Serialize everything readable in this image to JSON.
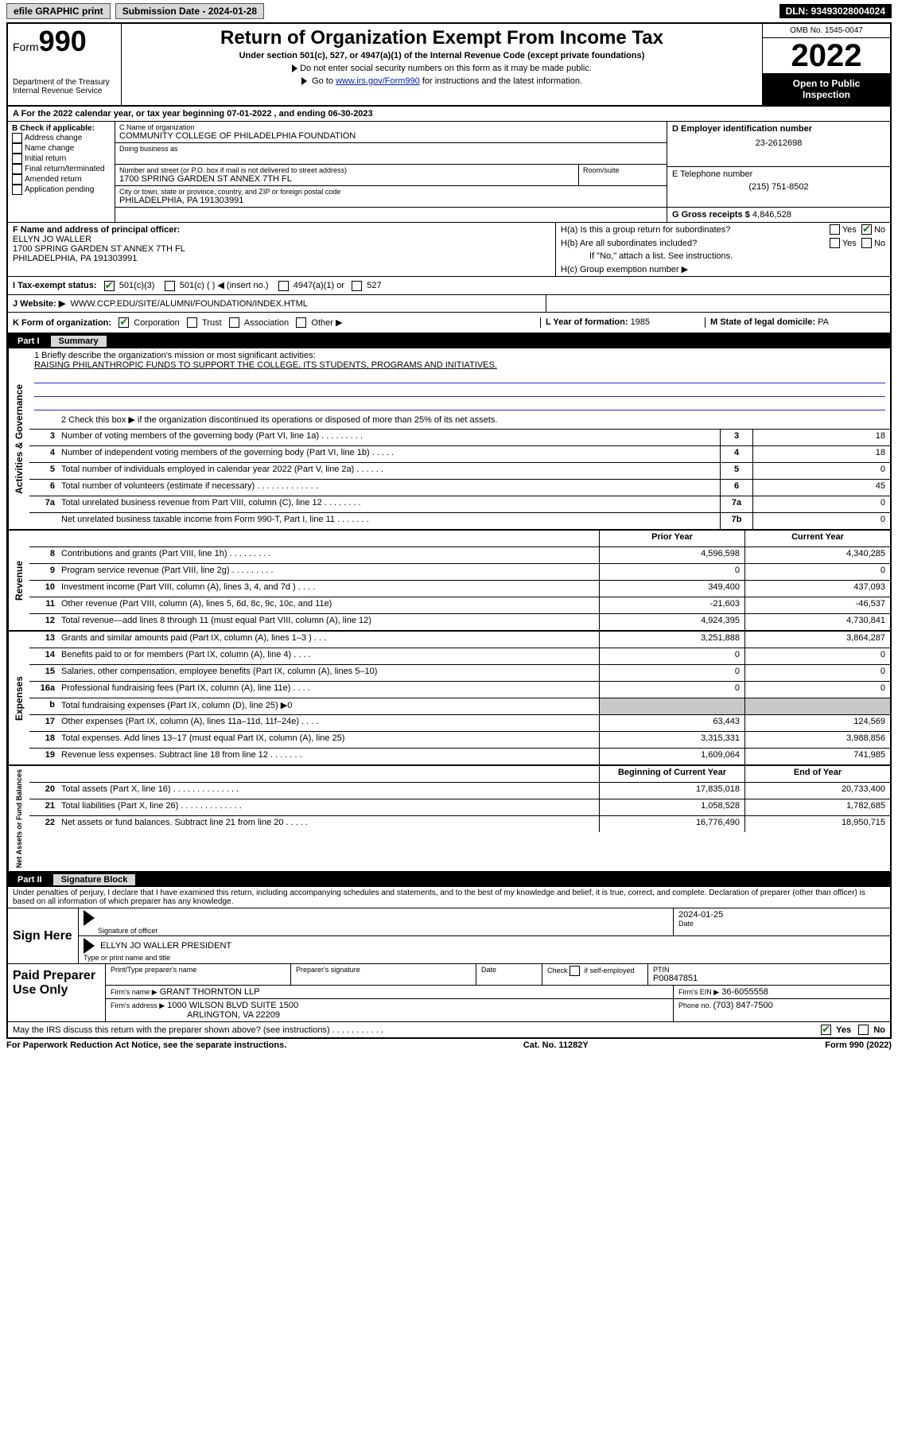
{
  "topbar": {
    "efile": "efile GRAPHIC print",
    "subdate_label": "Submission Date - 2024-01-28",
    "dln": "DLN: 93493028004024"
  },
  "header": {
    "form_label": "Form",
    "big990": "990",
    "dept": "Department of the Treasury",
    "irs": "Internal Revenue Service",
    "title": "Return of Organization Exempt From Income Tax",
    "sub1": "Under section 501(c), 527, or 4947(a)(1) of the Internal Revenue Code (except private foundations)",
    "sub2": "Do not enter social security numbers on this form as it may be made public.",
    "sub3_pre": "Go to ",
    "sub3_link": "www.irs.gov/Form990",
    "sub3_post": " for instructions and the latest information.",
    "omb": "OMB No. 1545-0047",
    "year": "2022",
    "inspect1": "Open to Public",
    "inspect2": "Inspection"
  },
  "rowA": {
    "label": "A For the 2022 calendar year, or tax year beginning ",
    "begin": "07-01-2022",
    "mid": " , and ending ",
    "end": "06-30-2023"
  },
  "B": {
    "label": "B Check if applicable:",
    "opts": [
      "Address change",
      "Name change",
      "Initial return",
      "Final return/terminated",
      "Amended return",
      "Application pending"
    ]
  },
  "C": {
    "name_label": "C Name of organization",
    "name": "COMMUNITY COLLEGE OF PHILADELPHIA FOUNDATION",
    "dba_label": "Doing business as",
    "addr_label": "Number and street (or P.O. box if mail is not delivered to street address)",
    "addr": "1700 SPRING GARDEN ST ANNEX 7TH FL",
    "suite_label": "Room/suite",
    "city_label": "City or town, state or province, country, and ZIP or foreign postal code",
    "city": "PHILADELPHIA, PA  191303991"
  },
  "D": {
    "label": "D Employer identification number",
    "val": "23-2612698"
  },
  "E": {
    "label": "E Telephone number",
    "val": "(215) 751-8502"
  },
  "G": {
    "label": "G Gross receipts $ ",
    "val": "4,846,528"
  },
  "F": {
    "label": "F Name and address of principal officer:",
    "name": "ELLYN JO WALLER",
    "addr1": "1700 SPRING GARDEN ST ANNEX 7TH FL",
    "addr2": "PHILADELPHIA, PA  191303991"
  },
  "H": {
    "a_label": "H(a)  Is this a group return for subordinates?",
    "b_label": "H(b)  Are all subordinates included?",
    "b_note": "If \"No,\" attach a list. See instructions.",
    "c_label": "H(c)  Group exemption number ▶",
    "yes": "Yes",
    "no": "No"
  },
  "I": {
    "label": "I    Tax-exempt status:",
    "o1": "501(c)(3)",
    "o2": "501(c) (   ) ◀ (insert no.)",
    "o3": "4947(a)(1) or",
    "o4": "527"
  },
  "J": {
    "label": "J    Website: ▶",
    "val": "WWW.CCP.EDU/SITE/ALUMNI/FOUNDATION/INDEX.HTML"
  },
  "K": {
    "label": "K Form of organization:",
    "o1": "Corporation",
    "o2": "Trust",
    "o3": "Association",
    "o4": "Other ▶"
  },
  "L": {
    "label": "L Year of formation: ",
    "val": "1985"
  },
  "M": {
    "label": "M State of legal domicile: ",
    "val": "PA"
  },
  "part1": {
    "num": "Part I",
    "title": "Summary",
    "q1_label": "1  Briefly describe the organization's mission or most significant activities:",
    "q1_val": "RAISING PHILANTHROPIC FUNDS TO SUPPORT THE COLLEGE, ITS STUDENTS, PROGRAMS AND INITIATIVES.",
    "q2": "2  Check this box ▶        if the organization discontinued its operations or disposed of more than 25% of its net assets.",
    "rows_gov": [
      {
        "n": "3",
        "d": "Number of voting members of the governing body (Part VI, line 1a)  .    .    .    .    .    .    .    .    .",
        "b": "3",
        "v": "18"
      },
      {
        "n": "4",
        "d": "Number of independent voting members of the governing body (Part VI, line 1b)   .    .    .    .    .",
        "b": "4",
        "v": "18"
      },
      {
        "n": "5",
        "d": "Total number of individuals employed in calendar year 2022 (Part V, line 2a)   .    .    .    .    .    .",
        "b": "5",
        "v": "0"
      },
      {
        "n": "6",
        "d": "Total number of volunteers (estimate if necessary)   .    .    .    .    .    .    .    .    .    .    .    .    .",
        "b": "6",
        "v": "45"
      },
      {
        "n": "7a",
        "d": "Total unrelated business revenue from Part VIII, column (C), line 12   .    .    .    .    .    .    .    .",
        "b": "7a",
        "v": "0"
      },
      {
        "n": "",
        "d": "Net unrelated business taxable income from Form 990-T, Part I, line 11   .    .    .    .    .    .    .",
        "b": "7b",
        "v": "0"
      }
    ],
    "hdr_prior": "Prior Year",
    "hdr_curr": "Current Year",
    "rows_rev": [
      {
        "n": "8",
        "d": "Contributions and grants (Part VIII, line 1h)   .    .    .    .    .    .    .    .    .",
        "p": "4,596,598",
        "c": "4,340,285"
      },
      {
        "n": "9",
        "d": "Program service revenue (Part VIII, line 2g)   .    .    .    .    .    .    .    .    .",
        "p": "0",
        "c": "0"
      },
      {
        "n": "10",
        "d": "Investment income (Part VIII, column (A), lines 3, 4, and 7d )   .    .    .    .",
        "p": "349,400",
        "c": "437,093"
      },
      {
        "n": "11",
        "d": "Other revenue (Part VIII, column (A), lines 5, 6d, 8c, 9c, 10c, and 11e)",
        "p": "-21,603",
        "c": "-46,537"
      },
      {
        "n": "12",
        "d": "Total revenue—add lines 8 through 11 (must equal Part VIII, column (A), line 12)",
        "p": "4,924,395",
        "c": "4,730,841"
      }
    ],
    "rows_exp": [
      {
        "n": "13",
        "d": "Grants and similar amounts paid (Part IX, column (A), lines 1–3 )   .    .    .",
        "p": "3,251,888",
        "c": "3,864,287"
      },
      {
        "n": "14",
        "d": "Benefits paid to or for members (Part IX, column (A), line 4)   .    .    .    .",
        "p": "0",
        "c": "0"
      },
      {
        "n": "15",
        "d": "Salaries, other compensation, employee benefits (Part IX, column (A), lines 5–10)",
        "p": "0",
        "c": "0"
      },
      {
        "n": "16a",
        "d": "Professional fundraising fees (Part IX, column (A), line 11e)   .    .    .    .",
        "p": "0",
        "c": "0"
      },
      {
        "n": "b",
        "d": "Total fundraising expenses (Part IX, column (D), line 25) ▶0",
        "p": "",
        "c": "",
        "shade": true
      },
      {
        "n": "17",
        "d": "Other expenses (Part IX, column (A), lines 11a–11d, 11f–24e)   .    .    .    .",
        "p": "63,443",
        "c": "124,569"
      },
      {
        "n": "18",
        "d": "Total expenses. Add lines 13–17 (must equal Part IX, column (A), line 25)",
        "p": "3,315,331",
        "c": "3,988,856"
      },
      {
        "n": "19",
        "d": "Revenue less expenses. Subtract line 18 from line 12   .    .    .    .    .    .    .",
        "p": "1,609,064",
        "c": "741,985"
      }
    ],
    "hdr_boy": "Beginning of Current Year",
    "hdr_eoy": "End of Year",
    "rows_net": [
      {
        "n": "20",
        "d": "Total assets (Part X, line 16)   .    .    .    .    .    .    .    .    .    .    .    .    .    .",
        "p": "17,835,018",
        "c": "20,733,400"
      },
      {
        "n": "21",
        "d": "Total liabilities (Part X, line 26)   .    .    .    .    .    .    .    .    .    .    .    .    .",
        "p": "1,058,528",
        "c": "1,782,685"
      },
      {
        "n": "22",
        "d": "Net assets or fund balances. Subtract line 21 from line 20   .    .    .    .    .",
        "p": "16,776,490",
        "c": "18,950,715"
      }
    ],
    "vlabels": {
      "gov": "Activities & Governance",
      "rev": "Revenue",
      "exp": "Expenses",
      "net": "Net Assets or Fund Balances"
    }
  },
  "part2": {
    "num": "Part II",
    "title": "Signature Block",
    "penalty": "Under penalties of perjury, I declare that I have examined this return, including accompanying schedules and statements, and to the best of my knowledge and belief, it is true, correct, and complete. Declaration of preparer (other than officer) is based on all information of which preparer has any knowledge.",
    "sign_here": "Sign Here",
    "sig_officer": "Signature of officer",
    "sig_date_val": "2024-01-25",
    "sig_date": "Date",
    "sig_name": "ELLYN JO WALLER  PRESIDENT",
    "sig_name_lab": "Type or print name and title",
    "paid": "Paid Preparer Use Only",
    "p_name_lab": "Print/Type preparer's name",
    "p_sig_lab": "Preparer's signature",
    "p_date_lab": "Date",
    "p_self": "Check        if self-employed",
    "p_ptin_lab": "PTIN",
    "p_ptin": "P00847851",
    "firm_name_lab": "Firm's name     ▶",
    "firm_name": "GRANT THORNTON LLP",
    "firm_ein_lab": "Firm's EIN ▶",
    "firm_ein": "36-6055558",
    "firm_addr_lab": "Firm's address ▶",
    "firm_addr1": "1000 WILSON BLVD SUITE 1500",
    "firm_addr2": "ARLINGTON, VA  22209",
    "firm_phone_lab": "Phone no. ",
    "firm_phone": "(703) 847-7500",
    "may": "May the IRS discuss this return with the preparer shown above? (see instructions)   .    .    .    .    .    .    .    .    .    .    .",
    "may_yes": "Yes",
    "may_no": "No"
  },
  "footer": {
    "left": "For Paperwork Reduction Act Notice, see the separate instructions.",
    "mid": "Cat. No. 11282Y",
    "right": "Form 990 (2022)"
  }
}
